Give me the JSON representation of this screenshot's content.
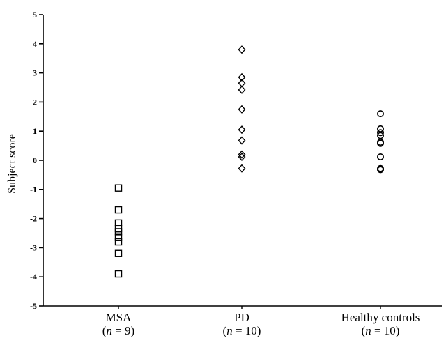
{
  "chart_data": {
    "type": "scatter",
    "title": "",
    "xlabel": "",
    "ylabel": "Subject score",
    "ylim": [
      -5,
      5
    ],
    "yticks": [
      "5",
      "4",
      "3",
      "2",
      "1",
      "0",
      "-1",
      "-2",
      "-3",
      "-4",
      "-5"
    ],
    "grid": false,
    "categories": [
      {
        "name": "MSA",
        "n_label": "= 9",
        "marker": "square",
        "values": [
          -0.95,
          -1.7,
          -2.15,
          -2.35,
          -2.45,
          -2.65,
          -2.8,
          -3.2,
          -3.9
        ]
      },
      {
        "name": "PD",
        "n_label": "= 10",
        "marker": "diamond",
        "values": [
          3.8,
          2.85,
          2.65,
          2.42,
          1.75,
          1.05,
          0.68,
          0.2,
          0.12,
          -0.28
        ]
      },
      {
        "name": "Healthy controls",
        "n_label": "= 10",
        "marker": "circle",
        "values": [
          1.6,
          1.08,
          0.95,
          0.85,
          0.62,
          0.58,
          0.12,
          -0.28,
          -0.32,
          -0.3
        ]
      }
    ]
  }
}
